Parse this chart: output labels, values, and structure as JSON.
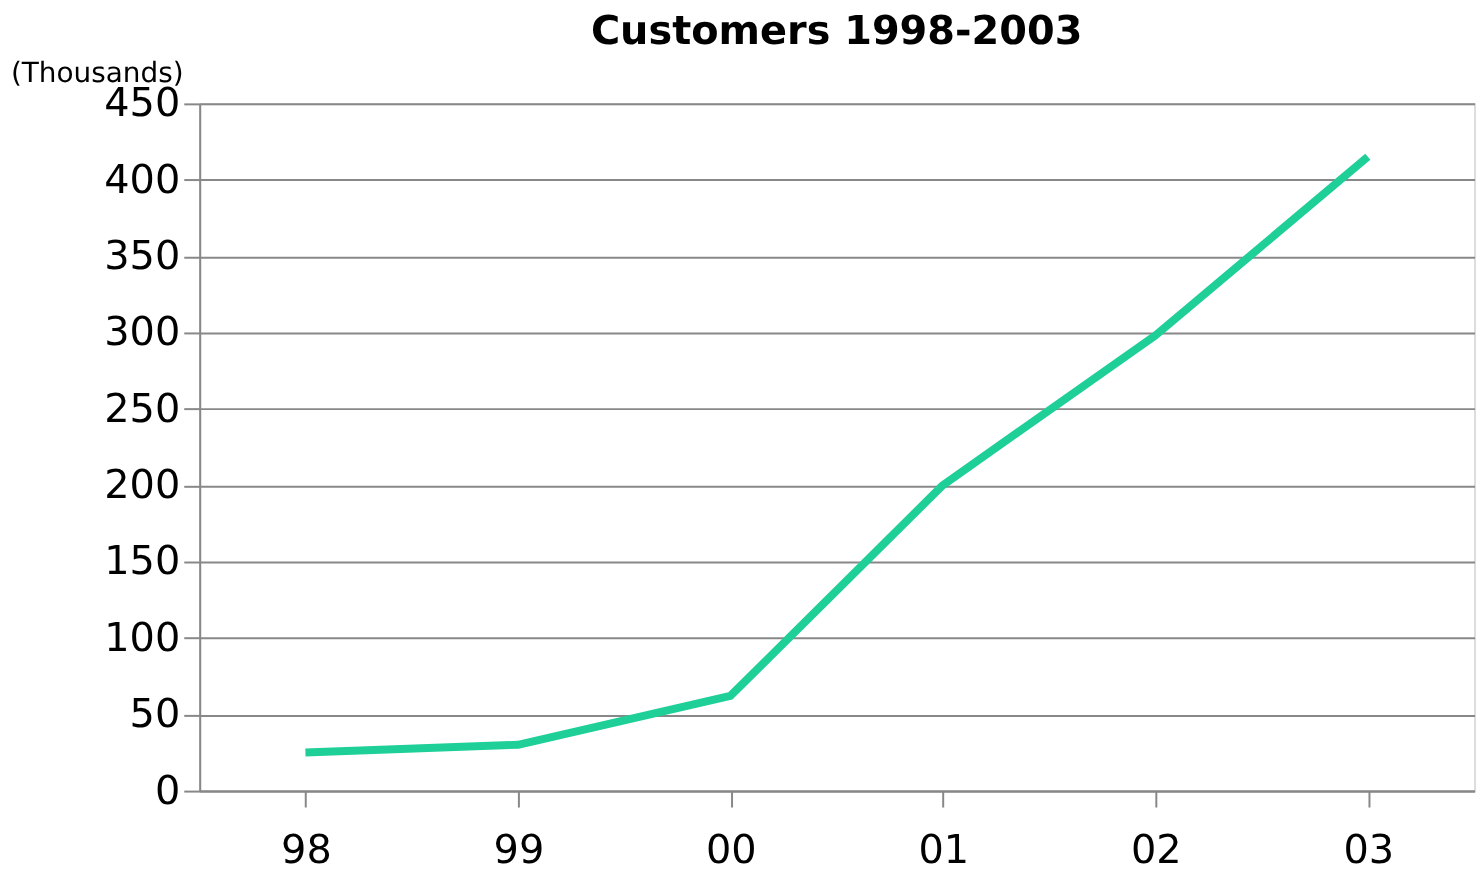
{
  "chart_data": {
    "type": "line",
    "title": "Customers 1998-2003",
    "ylabel": "(Thousands)",
    "categories": [
      "98",
      "99",
      "00",
      "01",
      "02",
      "03"
    ],
    "series": [
      {
        "color": "#1ecf98",
        "values": [
          25,
          30,
          62,
          200,
          298,
          415
        ]
      }
    ],
    "ylim": [
      0,
      450
    ],
    "yticks": [
      0,
      50,
      100,
      150,
      200,
      250,
      300,
      350,
      400,
      450
    ],
    "grid": "y",
    "legend": false,
    "marker": "none",
    "line_style": "solid"
  }
}
